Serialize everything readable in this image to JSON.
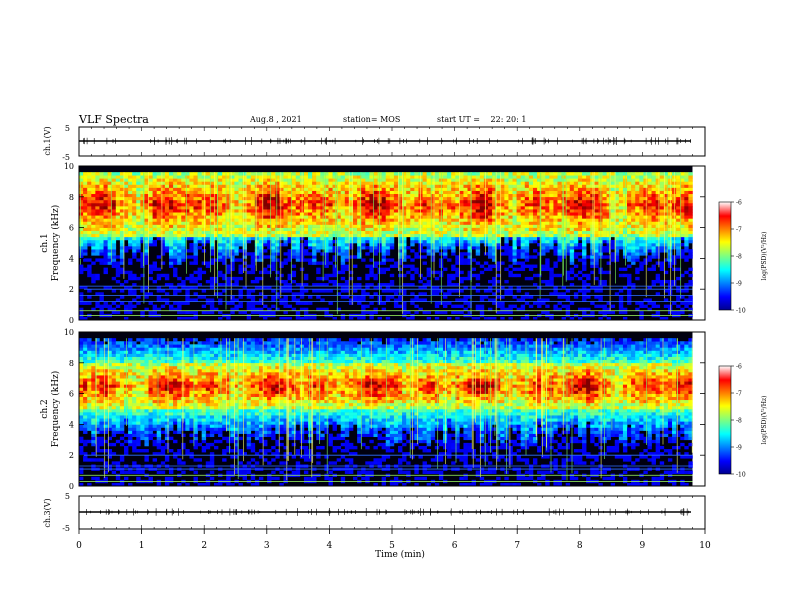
{
  "header": {
    "title": "VLF Spectra",
    "date": "Aug.8 , 2021",
    "station": "station= MOS",
    "start_label": "start UT =",
    "start_time": "22: 20: 1"
  },
  "chart_data": [
    {
      "type": "line",
      "name": "ch1-waveform",
      "ylabel": "ch.1(V)",
      "ylim": [
        -5,
        5
      ],
      "yticks": [
        "5",
        "-5"
      ],
      "xlim": [
        0,
        10
      ],
      "baseline": 0
    },
    {
      "type": "heatmap",
      "name": "ch1-spectrogram",
      "ylabel_top": "ch.1",
      "ylabel": "Frequency (kHz)",
      "ylim": [
        0,
        10
      ],
      "yticks": [
        "0",
        "2",
        "4",
        "6",
        "8",
        "10"
      ],
      "xlim": [
        0,
        10
      ],
      "data_end_min": 9.8,
      "peak_band_khz": [
        5.5,
        9.5
      ],
      "colorbar": {
        "label": "log(PSD)(V²/Hz)",
        "range": [
          -10,
          -6
        ],
        "ticks": [
          "-6",
          "-7",
          "-8",
          "-9",
          "-10"
        ]
      }
    },
    {
      "type": "heatmap",
      "name": "ch2-spectrogram",
      "ylabel_top": "ch.2",
      "ylabel": "Frequency (kHz)",
      "ylim": [
        0,
        10
      ],
      "yticks": [
        "0",
        "2",
        "4",
        "6",
        "8",
        "10"
      ],
      "xlim": [
        0,
        10
      ],
      "data_end_min": 9.8,
      "peak_band_khz": [
        5.0,
        8.0
      ],
      "colorbar": {
        "label": "log(PSD)(V²/Hz)",
        "range": [
          -10,
          -6
        ],
        "ticks": [
          "-6",
          "-7",
          "-8",
          "-9",
          "-10"
        ]
      }
    },
    {
      "type": "line",
      "name": "ch3-waveform",
      "ylabel": "ch.3(V)",
      "ylim": [
        -5,
        5
      ],
      "yticks": [
        "5",
        "-5"
      ],
      "xlim": [
        0,
        10
      ],
      "baseline": 0
    }
  ],
  "xaxis": {
    "label": "Time (min)",
    "range": [
      0,
      10
    ],
    "ticks": [
      "0",
      "1",
      "2",
      "3",
      "4",
      "5",
      "6",
      "7",
      "8",
      "9",
      "10"
    ]
  }
}
